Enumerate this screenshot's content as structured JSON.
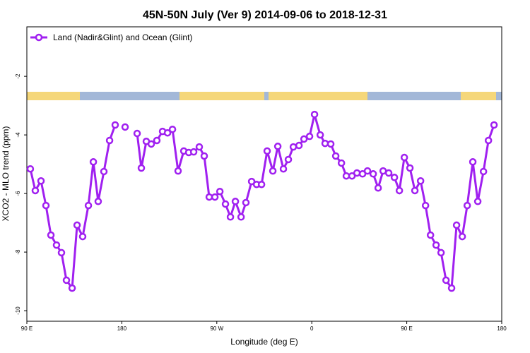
{
  "chart_data": {
    "type": "line",
    "title": "45N-50N July (Ver 9)   2014-09-06 to 2018-12-31",
    "x_label": "Longitude (deg E)",
    "y_label": "XCO2 - MLO trend (ppm)",
    "xlim": [
      90,
      540
    ],
    "ylim": [
      -10.36,
      -0.31
    ],
    "xticks": [
      {
        "value": 90,
        "label": "90 E"
      },
      180,
      {
        "value": 270,
        "label": "90 W"
      },
      {
        "value": 360,
        "label": "0"
      },
      {
        "value": 450,
        "label": "90 E"
      },
      {
        "value": 540,
        "label": "180"
      }
    ],
    "yticks": [
      -10,
      -8,
      -6,
      -4,
      -2
    ],
    "legend": "top-left",
    "series": [
      {
        "name": "Land (Nadir&Glint) and Ocean (Glint)",
        "color": "#a020f0",
        "x": [
          93.3,
          98,
          103.4,
          108.1,
          112.8,
          118.1,
          122.8,
          127.5,
          132.9,
          137.6,
          142.9,
          148.3,
          153,
          157.6,
          163,
          168.4,
          173.7,
          null,
          183.1,
          null,
          194.5,
          198.5,
          203.2,
          207.9,
          213.2,
          218.6,
          223.3,
          228,
          233.3,
          238.7,
          243.4,
          248.1,
          253.4,
          258.1,
          262.8,
          268.2,
          272.9,
          278.2,
          282.9,
          287.6,
          293,
          297.6,
          303,
          307.7,
          312.4,
          317.7,
          323.1,
          327.8,
          333.1,
          337.8,
          342.5,
          347.9,
          352.6,
          357.9,
          362.6,
          368,
          372.6,
          378,
          382.7,
          388.1,
          392.7,
          398.1,
          402.8,
          408.1,
          412.8,
          418.2,
          422.9,
          427.6,
          432.9,
          438.3,
          443,
          447.7,
          453,
          457.7,
          463.1,
          467.8,
          472.5,
          477.8,
          482.5,
          487.2,
          492.5,
          497.2,
          502.6,
          507.3,
          512.6,
          517.3,
          522.7,
          527.4,
          532.7
        ],
        "values": [
          -5.16,
          -5.9,
          -5.57,
          -6.41,
          -7.42,
          -7.76,
          -8.02,
          -8.96,
          -9.23,
          -7.08,
          -7.47,
          -6.41,
          -4.92,
          -6.27,
          -5.25,
          -4.19,
          -3.66,
          null,
          -3.73,
          null,
          -3.95,
          -5.13,
          -4.22,
          -4.31,
          -4.19,
          -3.88,
          -3.93,
          -3.81,
          -5.23,
          -4.55,
          -4.6,
          -4.58,
          -4.41,
          -4.72,
          -6.12,
          -6.12,
          -5.93,
          -6.36,
          -6.8,
          -6.27,
          -6.8,
          -6.31,
          -5.59,
          -5.69,
          -5.69,
          -4.55,
          -5.23,
          -4.39,
          -5.16,
          -4.84,
          -4.41,
          -4.36,
          -4.14,
          -4.05,
          -3.3,
          -4,
          -4.29,
          -4.31,
          -4.72,
          -4.96,
          -5.4,
          -5.4,
          -5.3,
          -5.33,
          -5.23,
          -5.33,
          -5.81,
          -5.23,
          -5.3,
          -5.45,
          -5.9,
          -4.77,
          -5.13,
          -5.9,
          -5.57,
          -6.41,
          -7.42,
          -7.76,
          -8.02,
          -8.96,
          -9.23,
          -7.08,
          -7.47,
          -6.41,
          -4.92,
          -6.27,
          -5.25,
          -4.19,
          -3.66
        ]
      }
    ]
  }
}
